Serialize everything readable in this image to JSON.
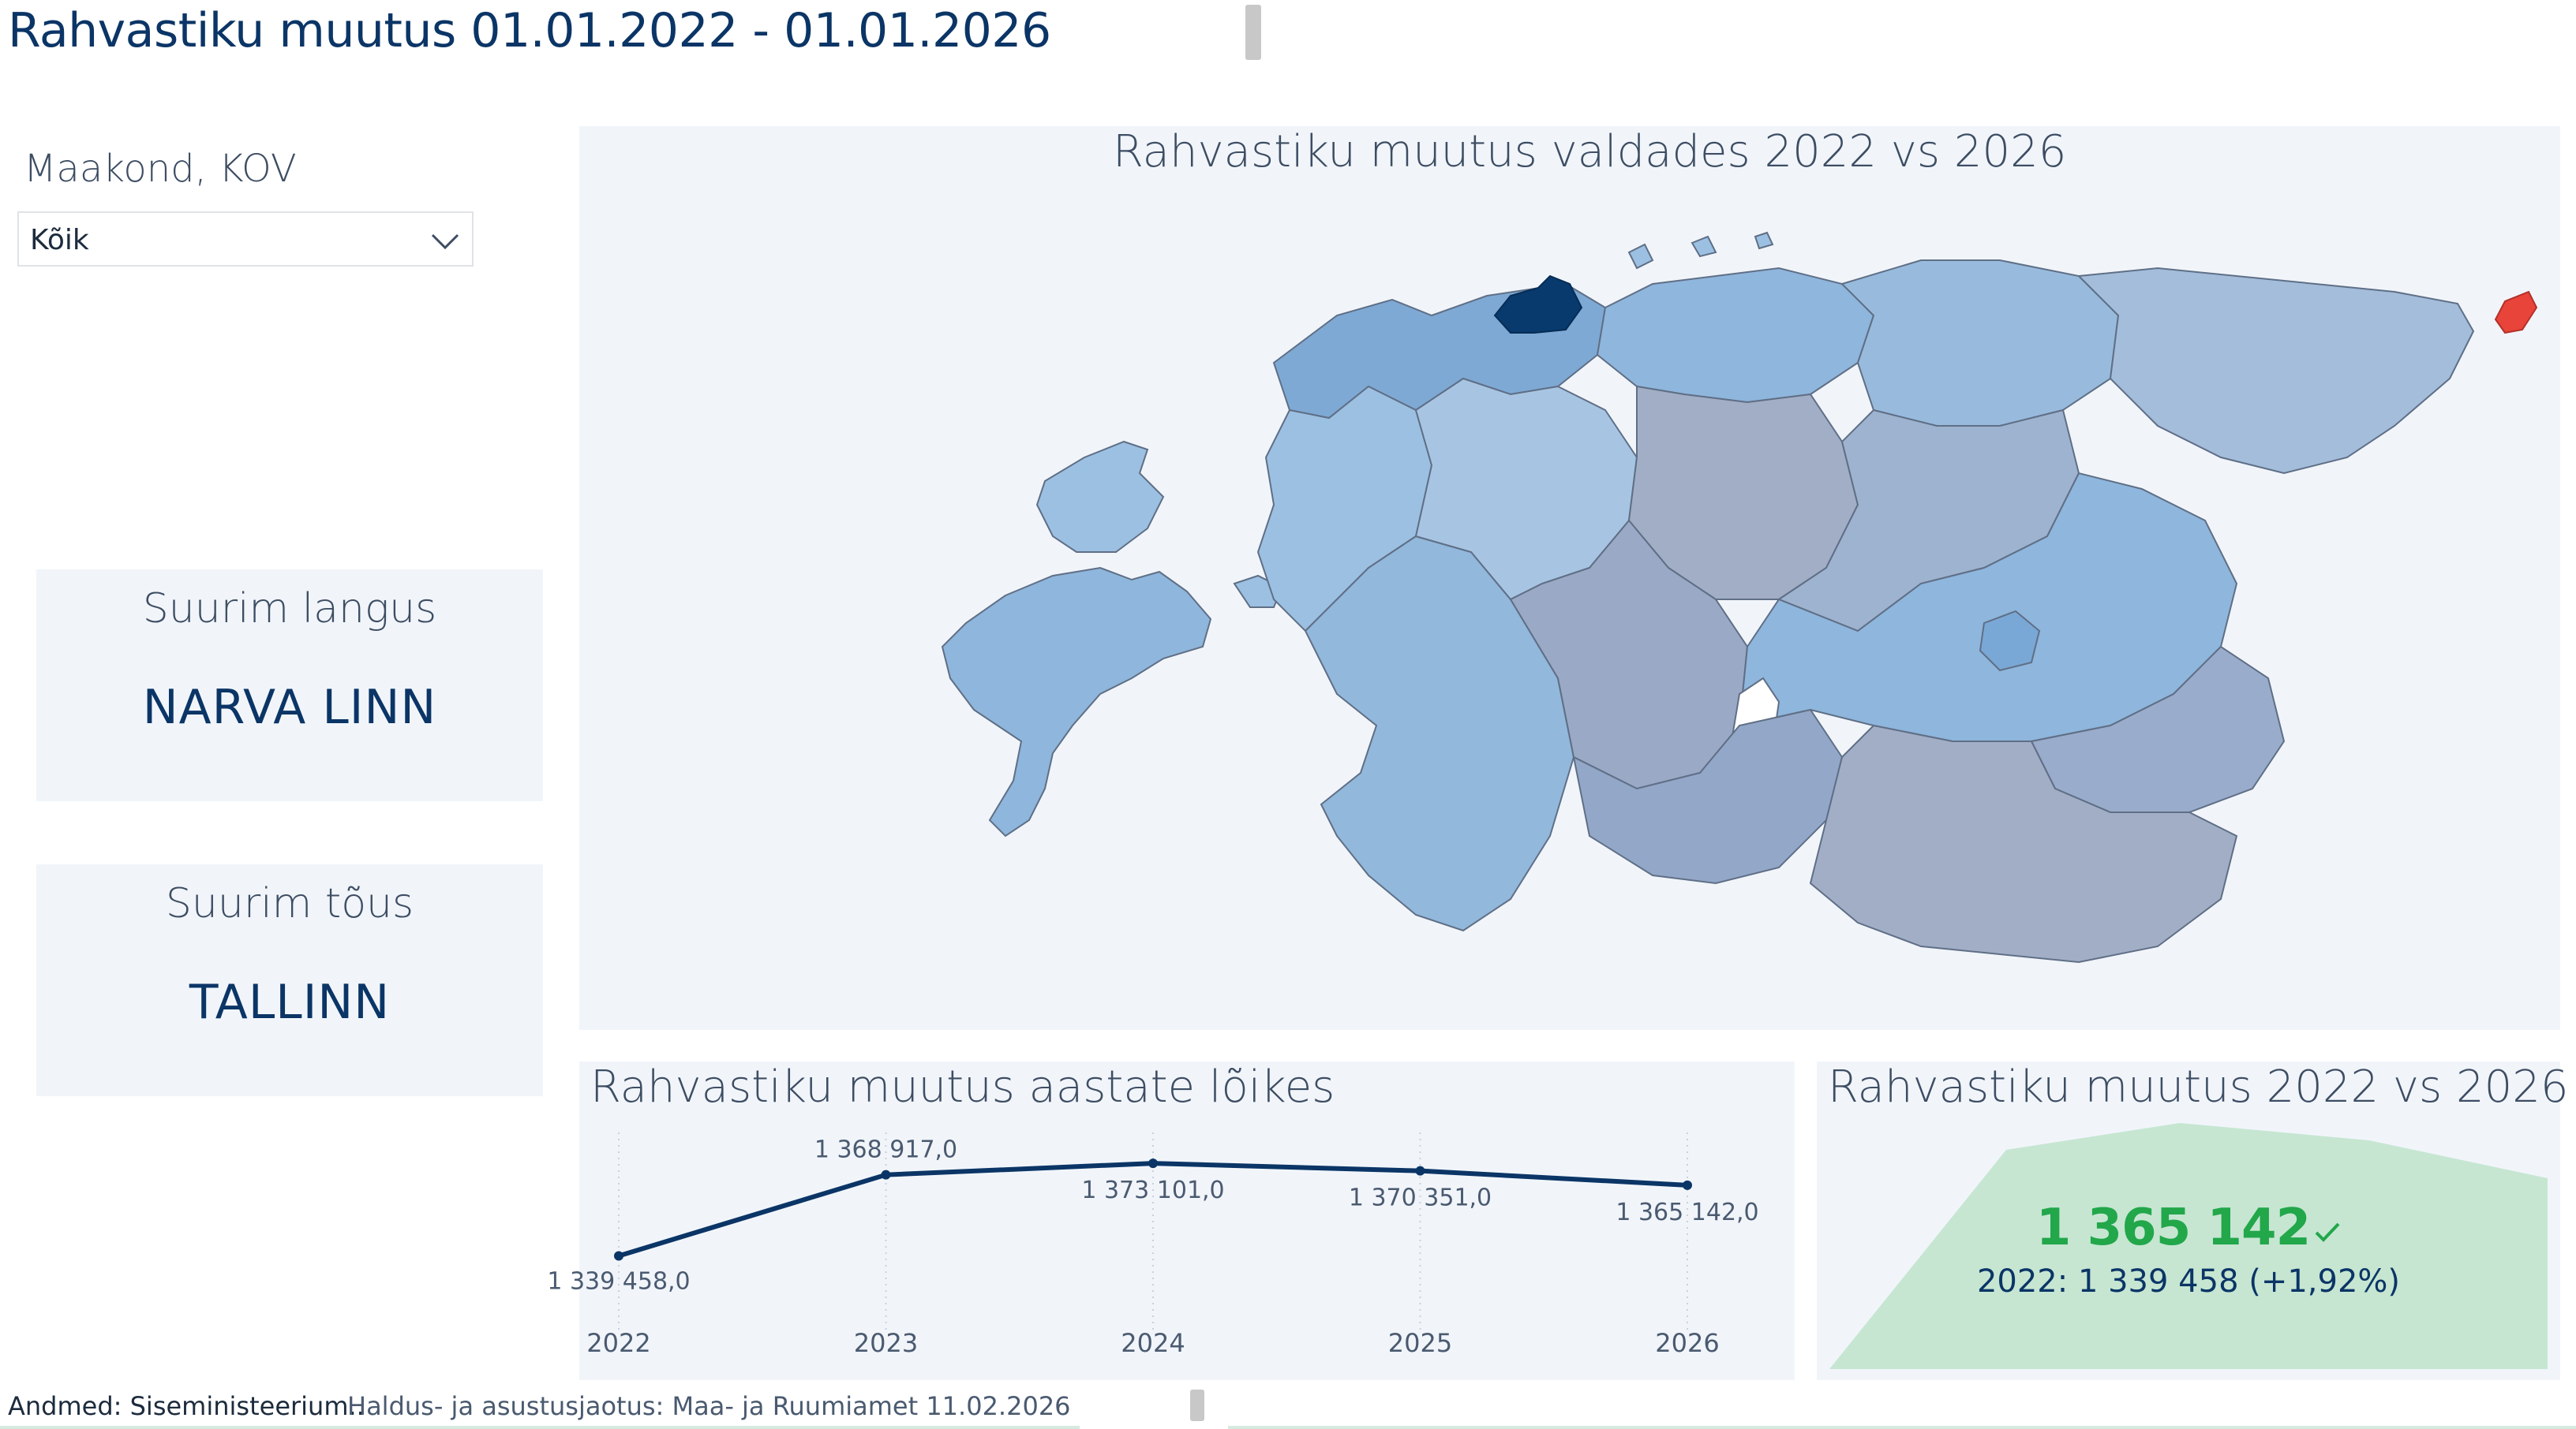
{
  "page_title": "Rahvastiku muutus 01.01.2022 - 01.01.2026",
  "filter": {
    "label": "Maakond, KOV",
    "selected": "Kõik",
    "icon": "chevron-down-icon"
  },
  "kpis": {
    "decline": {
      "title": "Suurim langus",
      "value": "NARVA LINN"
    },
    "growth": {
      "title": "Suurim tõus",
      "value": "TALLINN"
    }
  },
  "map": {
    "title": "Rahvastiku muutus valdades 2022 vs 2026",
    "colors": {
      "strong_growth": "#083a6e",
      "growth": "#8fb6dc",
      "neutral": "#a2aec6",
      "decline": "#e8443a"
    }
  },
  "chart_data": {
    "type": "line",
    "title": "Rahvastiku muutus aastate lõikes",
    "categories": [
      "2022",
      "2023",
      "2024",
      "2025",
      "2026"
    ],
    "values": [
      1339458,
      1368917,
      1373101,
      1370351,
      1365142
    ],
    "data_labels": [
      "1 339 458,0",
      "1 368 917,0",
      "1 373 101,0",
      "1 370 351,0",
      "1 365 142,0"
    ],
    "series_color": "#0b3566",
    "ylim": [
      1335000,
      1378000
    ],
    "grid": "vertical dotted"
  },
  "comparison": {
    "title": "Rahvastiku muutus 2022 vs 2026",
    "value": "1 365 142",
    "status_icon": "checkmark-icon",
    "previous": "2022: 1 339 458 (+1,92%)",
    "accent": "#22a74a",
    "area_color": "#c6e6d2"
  },
  "footer": {
    "source": "Andmed: Siseministeerium..",
    "boundaries": "Haldus- ja asustusjaotus: Maa- ja Ruumiamet 11.02.2026"
  }
}
